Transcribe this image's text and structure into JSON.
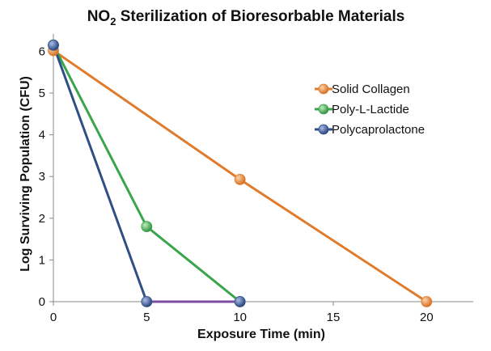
{
  "chart_data": {
    "type": "line",
    "title_parts": {
      "main": "NO",
      "subscript": "2",
      "rest": " Sterilization of Bioresorbable Materials"
    },
    "xlabel": "Exposure Time (min)",
    "ylabel": "Log Surviving Population (CFU)",
    "xlim": [
      0,
      22.5
    ],
    "ylim": [
      0,
      6.3
    ],
    "xticks": [
      0,
      5,
      10,
      15,
      20
    ],
    "yticks": [
      0,
      1,
      2,
      3,
      4,
      5,
      6
    ],
    "grid": false,
    "legend_position": "right",
    "series": [
      {
        "name": "Solid Collagen",
        "color": "#e07b2c",
        "x": [
          0,
          10,
          20
        ],
        "y": [
          6.02,
          2.93,
          0
        ]
      },
      {
        "name": "Poly-L-Lactide",
        "color": "#3aa54b",
        "x": [
          0,
          5,
          10
        ],
        "y": [
          6.15,
          1.8,
          0
        ]
      },
      {
        "name": "Polycaprolactone",
        "color": "#2f4f85",
        "line_color": "#7b4fa0",
        "x": [
          0,
          5,
          10
        ],
        "y": [
          6.15,
          0,
          0
        ]
      }
    ]
  }
}
